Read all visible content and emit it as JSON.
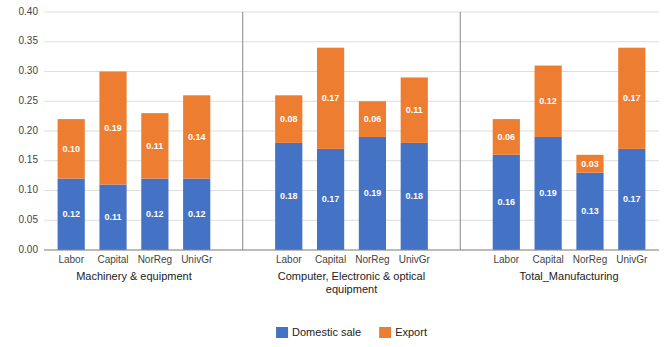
{
  "chart_data": {
    "type": "bar",
    "stacked": true,
    "groups": [
      {
        "name": "Machinery & equipment",
        "categories": [
          "Labor",
          "Capital",
          "NorReg",
          "UnivGr"
        ]
      },
      {
        "name": "Computer, Electronic & optical\nequipment",
        "categories": [
          "Labor",
          "Capital",
          "NorReg",
          "UnivGr"
        ]
      },
      {
        "name": "Total_Manufacturing",
        "categories": [
          "Labor",
          "Capital",
          "NorReg",
          "UnivGr"
        ]
      }
    ],
    "series": [
      {
        "name": "Domestic sale",
        "color": "#4472C4",
        "values": [
          0.12,
          0.11,
          0.12,
          0.12,
          0.18,
          0.17,
          0.19,
          0.18,
          0.16,
          0.19,
          0.13,
          0.17
        ],
        "value_labels": [
          "0.12",
          "0.11",
          "0.12",
          "0.12",
          "0.18",
          "0.17",
          "0.19",
          "0.18",
          "0.16",
          "0.19",
          "0.13",
          "0.17"
        ]
      },
      {
        "name": "Export",
        "color": "#ED7D31",
        "values": [
          0.1,
          0.19,
          0.11,
          0.14,
          0.08,
          0.17,
          0.06,
          0.11,
          0.06,
          0.12,
          0.03,
          0.17
        ],
        "value_labels": [
          "0.10",
          "0.19",
          "0.11",
          "0.14",
          "0.08",
          "0.17",
          "0.06",
          "0.11",
          "0.06",
          "0.12",
          "0.03",
          "0.17"
        ]
      }
    ],
    "ylim": [
      0.0,
      0.4
    ],
    "yticks": [
      {
        "value": 0.0,
        "label": "0.00"
      },
      {
        "value": 0.05,
        "label": "0.05"
      },
      {
        "value": 0.1,
        "label": "0.10"
      },
      {
        "value": 0.15,
        "label": "0.15"
      },
      {
        "value": 0.2,
        "label": "0.20"
      },
      {
        "value": 0.25,
        "label": "0.25"
      },
      {
        "value": 0.3,
        "label": "0.30"
      },
      {
        "value": 0.35,
        "label": "0.35"
      },
      {
        "value": 0.4,
        "label": "0.40"
      }
    ],
    "grid": true,
    "data_labels": true,
    "legend": "bottom"
  }
}
